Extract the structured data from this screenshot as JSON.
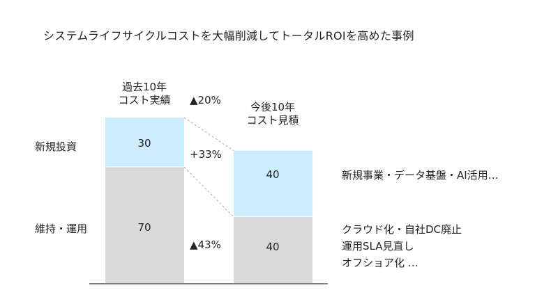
{
  "title": "システムライフサイクルコストを大幅削減してトータルROIを高めた事例",
  "chart_data": {
    "type": "bar",
    "stacked": true,
    "categories": [
      "過去10年\nコスト実績",
      "今後10年\nコスト見積"
    ],
    "category_labels": [
      [
        "過去10年",
        "コスト実績"
      ],
      [
        "今後10年",
        "コスト見積"
      ]
    ],
    "series": [
      {
        "name": "維持・運用",
        "values": [
          70,
          40
        ],
        "color": "#d9d9d9"
      },
      {
        "name": "新規投資",
        "values": [
          30,
          40
        ],
        "color": "#ccecff"
      }
    ],
    "ylim": [
      0,
      100
    ],
    "change_labels": {
      "total": "▲20%",
      "new_investment": "+33%",
      "maintenance": "▲43%"
    },
    "annotations": {
      "new_investment": "新規事業・データ基盤・AI活用…",
      "maintenance": [
        "クラウド化・自社DC廃止",
        "運用SLA見直し",
        "オフショア化 …"
      ]
    }
  }
}
